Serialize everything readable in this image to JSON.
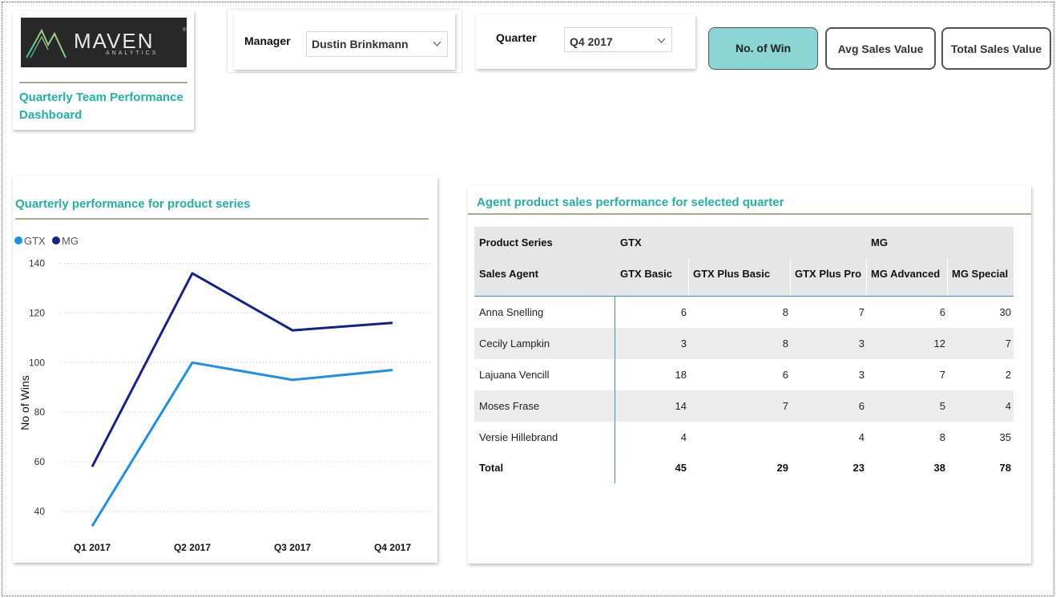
{
  "logo": {
    "wordmark": "MAVEN",
    "submark": "ANALYTICS",
    "registered": "®"
  },
  "dashboard_title": "Quarterly Team Performance Dashboard",
  "slicers": {
    "manager": {
      "label": "Manager",
      "value": "Dustin Brinkmann"
    },
    "quarter": {
      "label": "Quarter",
      "value": "Q4 2017"
    }
  },
  "measure_buttons": [
    {
      "label": "No. of Win",
      "selected": true
    },
    {
      "label": "Avg Sales Value",
      "selected": false
    },
    {
      "label": "Total Sales Value",
      "selected": false
    }
  ],
  "line_chart_card": {
    "title": "Quarterly performance for product series"
  },
  "chart_data": {
    "type": "line",
    "title": "Quarterly performance for product series",
    "categories": [
      "Q1 2017",
      "Q2 2017",
      "Q3 2017",
      "Q4 2017"
    ],
    "series": [
      {
        "name": "GTX",
        "values": [
          34,
          100,
          93,
          97
        ],
        "color": "#1e8fe8"
      },
      {
        "name": "MG",
        "values": [
          58,
          136,
          113,
          116
        ],
        "color": "#14238a"
      }
    ],
    "xlabel": "",
    "ylabel": "No of Wins",
    "yticks": [
      40,
      60,
      80,
      100,
      120,
      140
    ],
    "ylim": [
      28,
      146
    ],
    "grid": true,
    "legend_position": "top-left"
  },
  "matrix_card": {
    "title": "Agent product sales performance for selected quarter",
    "header_row1_label": "Product Series",
    "header_row2_label": "Sales Agent",
    "groups": [
      {
        "label": "GTX"
      },
      {
        "label": "MG"
      }
    ],
    "columns": [
      "GTX Basic",
      "GTX Plus Basic",
      "GTX Plus Pro",
      "MG Advanced",
      "MG Special"
    ],
    "rows": [
      {
        "agent": "Anna Snelling",
        "values": [
          "6",
          "8",
          "7",
          "6",
          "30"
        ]
      },
      {
        "agent": "Cecily Lampkin",
        "values": [
          "3",
          "8",
          "3",
          "12",
          "7"
        ]
      },
      {
        "agent": "Lajuana Vencill",
        "values": [
          "18",
          "6",
          "3",
          "7",
          "2"
        ]
      },
      {
        "agent": "Moses Frase",
        "values": [
          "14",
          "7",
          "6",
          "5",
          "4"
        ]
      },
      {
        "agent": "Versie Hillebrand",
        "values": [
          "4",
          "",
          "4",
          "8",
          "35"
        ]
      }
    ],
    "total": {
      "label": "Total",
      "values": [
        "45",
        "29",
        "23",
        "38",
        "78"
      ]
    }
  }
}
